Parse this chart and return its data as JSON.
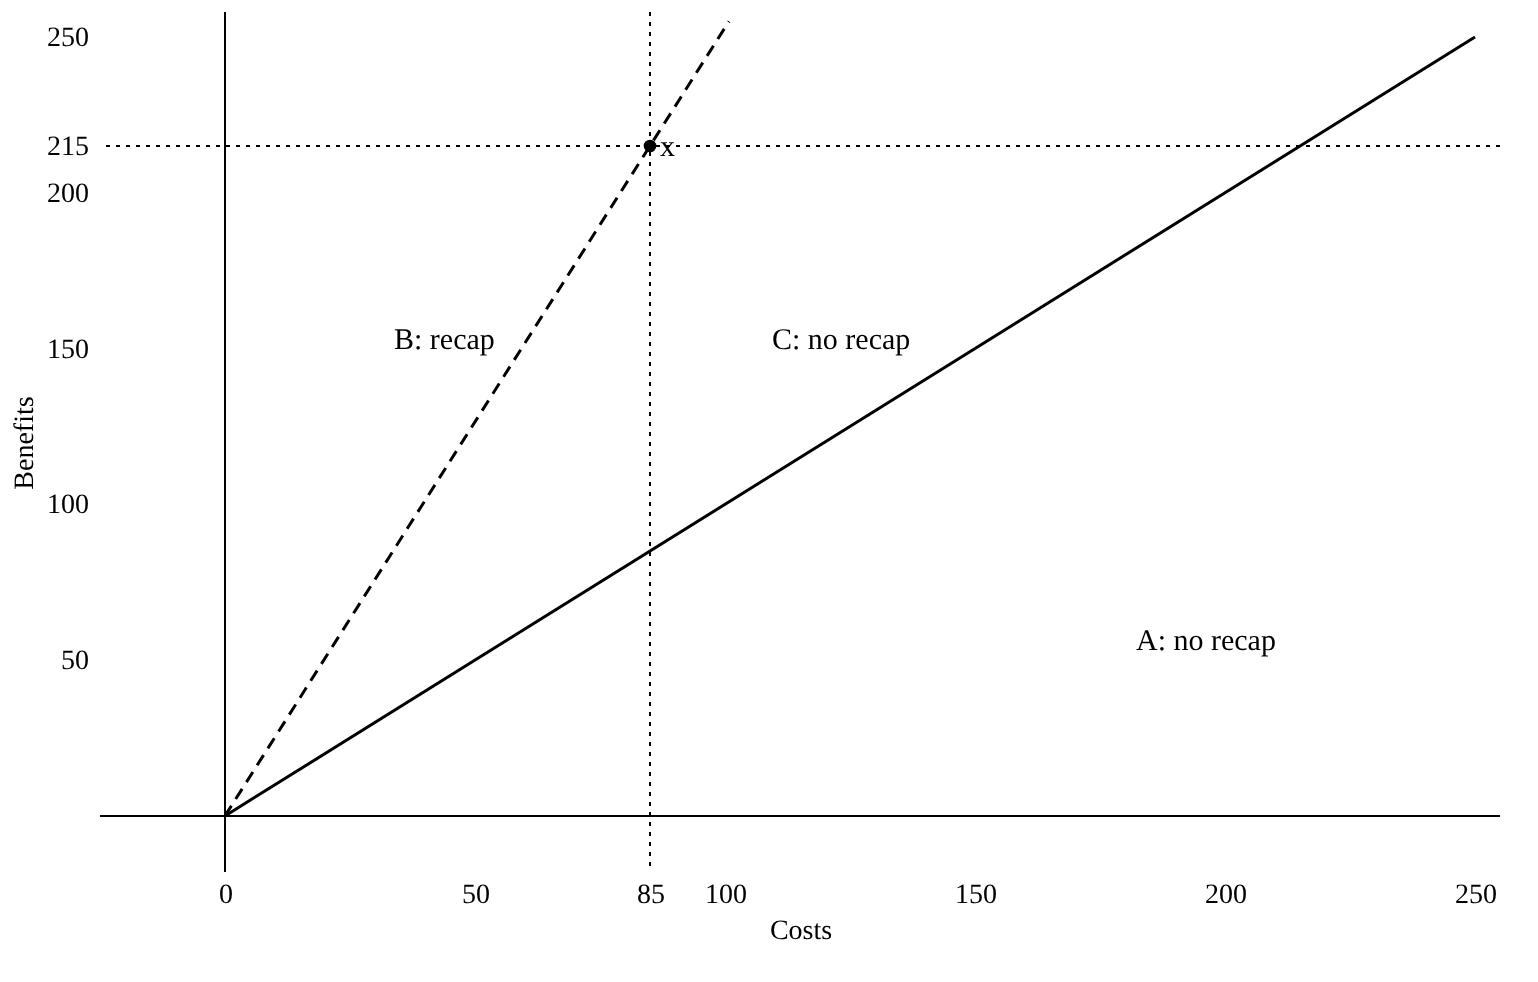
{
  "chart_data": {
    "type": "line",
    "xlabel": "Costs",
    "ylabel": "Benefits",
    "xlim": [
      -25,
      255
    ],
    "ylim": [
      -18,
      258
    ],
    "xticks": [
      0,
      50,
      85,
      100,
      150,
      200,
      250
    ],
    "yticks": [
      50,
      100,
      150,
      200,
      215,
      250
    ],
    "grid": false,
    "series": [
      {
        "color": "#000000",
        "x": [
          0,
          250
        ],
        "values": [
          0,
          250
        ],
        "line_style": "solid"
      },
      {
        "color": "#000000",
        "x": [
          0,
          100.8
        ],
        "values": [
          0,
          255
        ],
        "line_style": "dashed"
      },
      {
        "type": "scatter",
        "marker": "circle",
        "color": "#000000",
        "x": [
          85
        ],
        "values": [
          215
        ]
      }
    ],
    "ref_lines": [
      {
        "axis": "x",
        "value": 85,
        "line_style": "dotted",
        "color": "#000000"
      },
      {
        "axis": "y",
        "value": 215,
        "line_style": "dotted",
        "color": "#000000"
      }
    ],
    "annotations": [
      {
        "text": "x",
        "x": 85,
        "y": 215
      },
      "B: recap",
      "C: no recap",
      "A: no recap"
    ]
  }
}
